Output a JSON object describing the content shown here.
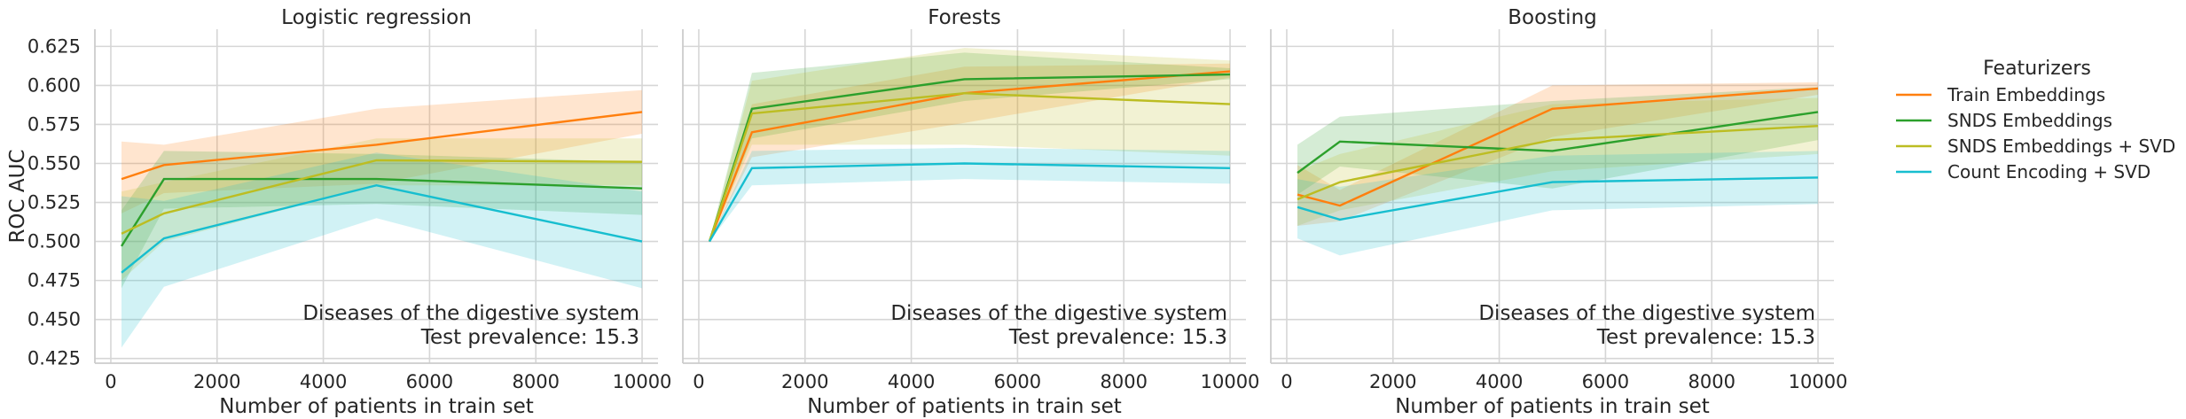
{
  "chart_data": {
    "type": "line",
    "ylabel": "ROC AUC",
    "xlabel": "Number of patients in train set",
    "xlim": [
      -300,
      10300
    ],
    "ylim": [
      0.422,
      0.636
    ],
    "xticks": [
      0,
      2000,
      4000,
      6000,
      8000,
      10000
    ],
    "xtick_labels": [
      "0",
      "2000",
      "4000",
      "6000",
      "8000",
      "10000"
    ],
    "yticks": [
      0.425,
      0.45,
      0.475,
      0.5,
      0.525,
      0.55,
      0.575,
      0.6,
      0.625
    ],
    "ytick_labels": [
      "0.425",
      "0.450",
      "0.475",
      "0.500",
      "0.525",
      "0.550",
      "0.575",
      "0.600",
      "0.625"
    ],
    "grid": true,
    "legend": {
      "title": "Featurizers",
      "placement": "right",
      "entries": [
        {
          "label": "Train Embeddings",
          "color": "#ff7f0e"
        },
        {
          "label": "SNDS Embeddings",
          "color": "#2ca02c"
        },
        {
          "label": "SNDS Embeddings + SVD",
          "color": "#bcbd22"
        },
        {
          "label": "Count Encoding + SVD",
          "color": "#17becf"
        }
      ]
    },
    "panels": [
      {
        "title": "Logistic regression",
        "annotation_line1": "Diseases of the digestive system",
        "annotation_line2": "Test prevalence: 15.3",
        "series": [
          {
            "name": "Train Embeddings",
            "color": "#ff7f0e",
            "x": [
              200,
              1000,
              5000,
              10000
            ],
            "y": [
              0.54,
              0.549,
              0.562,
              0.583
            ],
            "lo": [
              0.518,
              0.531,
              0.537,
              0.569
            ],
            "hi": [
              0.564,
              0.562,
              0.585,
              0.597
            ]
          },
          {
            "name": "SNDS Embeddings",
            "color": "#2ca02c",
            "x": [
              200,
              1000,
              5000,
              10000
            ],
            "y": [
              0.497,
              0.54,
              0.54,
              0.534
            ],
            "lo": [
              0.47,
              0.521,
              0.524,
              0.517
            ],
            "hi": [
              0.52,
              0.558,
              0.556,
              0.551
            ]
          },
          {
            "name": "SNDS Embeddings + SVD",
            "color": "#bcbd22",
            "x": [
              200,
              1000,
              5000,
              10000
            ],
            "y": [
              0.505,
              0.518,
              0.552,
              0.551
            ],
            "lo": [
              0.475,
              0.5,
              0.536,
              0.536
            ],
            "hi": [
              0.532,
              0.538,
              0.566,
              0.566
            ]
          },
          {
            "name": "Count Encoding + SVD",
            "color": "#17becf",
            "x": [
              200,
              1000,
              5000,
              10000
            ],
            "y": [
              0.48,
              0.502,
              0.536,
              0.5
            ],
            "lo": [
              0.432,
              0.471,
              0.515,
              0.47
            ],
            "hi": [
              0.529,
              0.526,
              0.557,
              0.532
            ]
          }
        ]
      },
      {
        "title": "Forests",
        "annotation_line1": "Diseases of the digestive system",
        "annotation_line2": "Test prevalence: 15.3",
        "series": [
          {
            "name": "Train Embeddings",
            "color": "#ff7f0e",
            "x": [
              200,
              1000,
              5000,
              10000
            ],
            "y": [
              0.5,
              0.57,
              0.595,
              0.609
            ],
            "lo": [
              0.5,
              0.554,
              0.576,
              0.605
            ],
            "hi": [
              0.5,
              0.588,
              0.612,
              0.614
            ]
          },
          {
            "name": "SNDS Embeddings",
            "color": "#2ca02c",
            "x": [
              200,
              1000,
              5000,
              10000
            ],
            "y": [
              0.5,
              0.585,
              0.604,
              0.607
            ],
            "lo": [
              0.5,
              0.566,
              0.59,
              0.604
            ],
            "hi": [
              0.5,
              0.608,
              0.621,
              0.611
            ]
          },
          {
            "name": "SNDS Embeddings + SVD",
            "color": "#bcbd22",
            "x": [
              200,
              1000,
              5000,
              10000
            ],
            "y": [
              0.5,
              0.582,
              0.595,
              0.588
            ],
            "lo": [
              0.5,
              0.562,
              0.562,
              0.555
            ],
            "hi": [
              0.5,
              0.603,
              0.624,
              0.616
            ]
          },
          {
            "name": "Count Encoding + SVD",
            "color": "#17becf",
            "x": [
              200,
              1000,
              5000,
              10000
            ],
            "y": [
              0.5,
              0.547,
              0.55,
              0.547
            ],
            "lo": [
              0.5,
              0.536,
              0.54,
              0.537
            ],
            "hi": [
              0.5,
              0.558,
              0.56,
              0.558
            ]
          }
        ]
      },
      {
        "title": "Boosting",
        "annotation_line1": "Diseases of the digestive system",
        "annotation_line2": "Test prevalence: 15.3",
        "series": [
          {
            "name": "Train Embeddings",
            "color": "#ff7f0e",
            "x": [
              200,
              1000,
              5000,
              10000
            ],
            "y": [
              0.53,
              0.523,
              0.585,
              0.598
            ],
            "lo": [
              0.51,
              0.513,
              0.567,
              0.594
            ],
            "hi": [
              0.549,
              0.533,
              0.6,
              0.602
            ]
          },
          {
            "name": "SNDS Embeddings",
            "color": "#2ca02c",
            "x": [
              200,
              1000,
              5000,
              10000
            ],
            "y": [
              0.544,
              0.564,
              0.558,
              0.583
            ],
            "lo": [
              0.53,
              0.548,
              0.534,
              0.565
            ],
            "hi": [
              0.562,
              0.58,
              0.59,
              0.599
            ]
          },
          {
            "name": "SNDS Embeddings + SVD",
            "color": "#bcbd22",
            "x": [
              200,
              1000,
              5000,
              10000
            ],
            "y": [
              0.527,
              0.538,
              0.565,
              0.574
            ],
            "lo": [
              0.51,
              0.52,
              0.545,
              0.556
            ],
            "hi": [
              0.545,
              0.556,
              0.588,
              0.592
            ]
          },
          {
            "name": "Count Encoding + SVD",
            "color": "#17becf",
            "x": [
              200,
              1000,
              5000,
              10000
            ],
            "y": [
              0.522,
              0.514,
              0.538,
              0.541
            ],
            "lo": [
              0.502,
              0.491,
              0.52,
              0.524
            ],
            "hi": [
              0.54,
              0.535,
              0.555,
              0.558
            ]
          }
        ]
      }
    ]
  }
}
